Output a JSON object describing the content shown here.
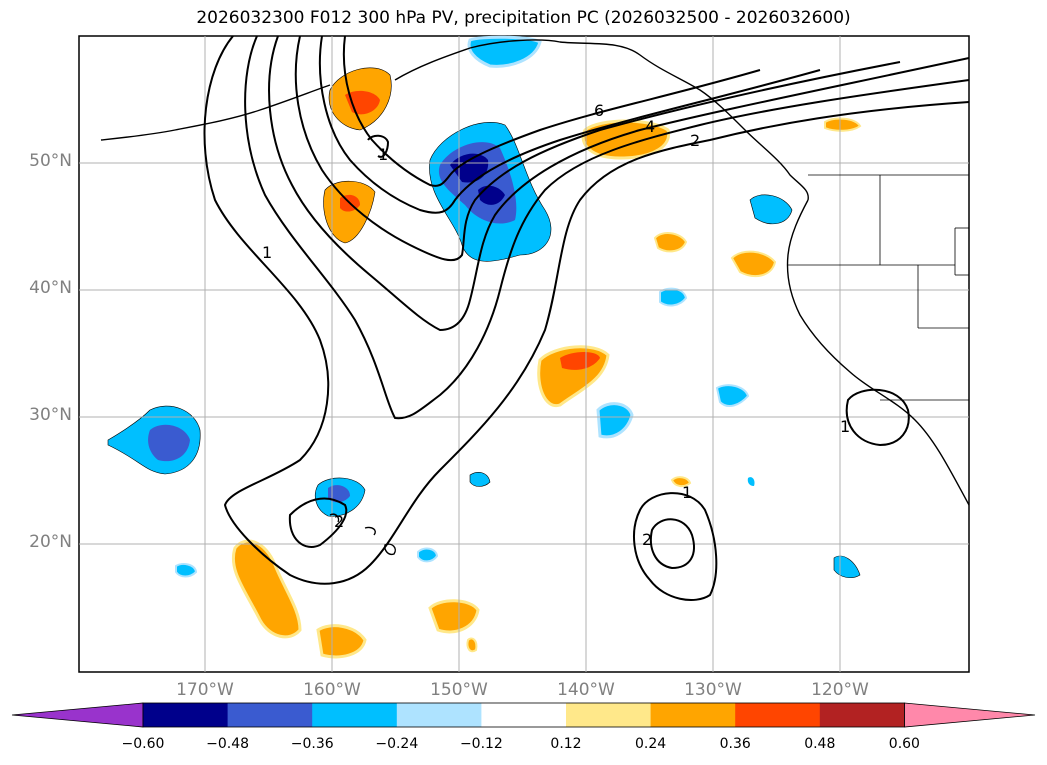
{
  "title": "2026032300 F012 300 hPa PV, precipitation PC (2026032500 - 2026032600)",
  "map": {
    "lat_labels": [
      "50°N",
      "40°N",
      "30°N",
      "20°N"
    ],
    "lon_labels": [
      "170°W",
      "160°W",
      "150°W",
      "140°W",
      "130°W",
      "120°W"
    ],
    "contour_labels": [
      "6",
      "4",
      "2",
      "1",
      "1",
      "1",
      "2",
      "1",
      "2"
    ]
  },
  "colorbar": {
    "ticks": [
      "−0.60",
      "−0.48",
      "−0.36",
      "−0.24",
      "−0.12",
      "0.12",
      "0.24",
      "0.36",
      "0.48",
      "0.60"
    ],
    "colors": [
      "#9933cc",
      "#00008b",
      "#3a5bd0",
      "#00bfff",
      "#aee3ff",
      "#ffffff",
      "#ffe88a",
      "#ffa500",
      "#ff4500",
      "#b22222",
      "#ff88aa"
    ]
  }
}
